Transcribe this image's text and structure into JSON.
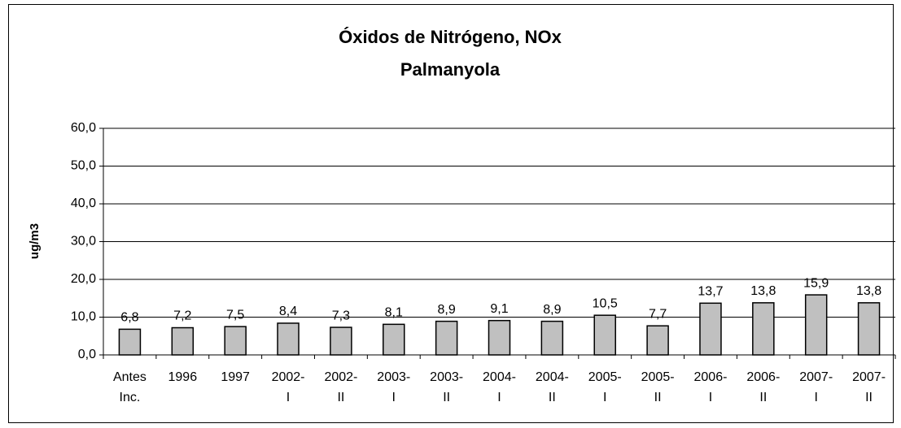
{
  "chart_data": {
    "type": "bar",
    "title": "Óxidos de Nitrógeno, NOx",
    "subtitle": "Palmanyola",
    "y_label": "ug/m3",
    "categories": [
      "Antes Inc.",
      "1996",
      "1997",
      "2002- I",
      "2002- II",
      "2003- I",
      "2003- II",
      "2004- I",
      "2004- II",
      "2005- I",
      "2005- II",
      "2006- I",
      "2006- II",
      "2007- I",
      "2007- II"
    ],
    "values": [
      6.8,
      7.2,
      7.5,
      8.4,
      7.3,
      8.1,
      8.9,
      9.1,
      8.9,
      10.5,
      7.7,
      13.7,
      13.8,
      15.9,
      13.8
    ],
    "value_labels": [
      "6,8",
      "7,2",
      "7,5",
      "8,4",
      "7,3",
      "8,1",
      "8,9",
      "9,1",
      "8,9",
      "10,5",
      "7,7",
      "13,7",
      "13,8",
      "15,9",
      "13,8"
    ],
    "color": "#c0c0c0",
    "ylim": [
      0,
      60
    ],
    "yticks": [
      {
        "value": 0,
        "label": "0,0"
      },
      {
        "value": 10,
        "label": "10,0"
      },
      {
        "value": 20,
        "label": "20,0"
      },
      {
        "value": 30,
        "label": "30,0"
      },
      {
        "value": 40,
        "label": "40,0"
      },
      {
        "value": 50,
        "label": "50,0"
      },
      {
        "value": 60,
        "label": "60,0"
      }
    ],
    "grid": true
  }
}
